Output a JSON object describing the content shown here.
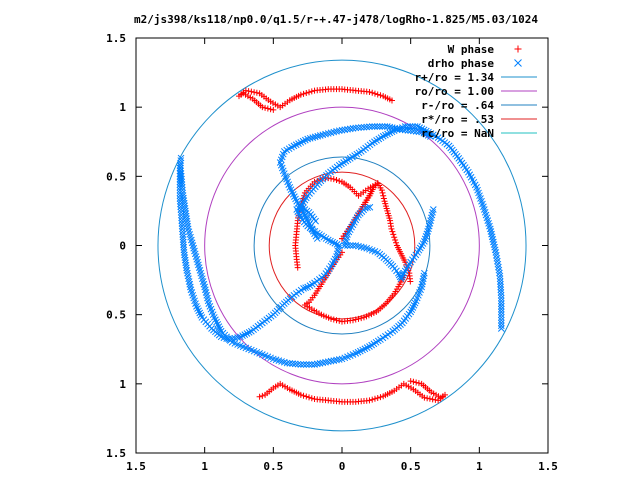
{
  "chart_data": {
    "type": "scatter",
    "title": "m2/js398/ks118/np0.0/q1.5/r-+.47-j478/logRho-1.825/M5.03/1024",
    "xlim": [
      -1.5,
      1.5
    ],
    "ylim": [
      -1.5,
      1.5
    ],
    "x_tick_labels": [
      "1.5",
      "1",
      "0.5",
      "0",
      "0.5",
      "1",
      "1.5"
    ],
    "y_tick_labels": [
      "1.5",
      "1",
      "0.5",
      "0",
      "0.5",
      "1",
      "1.5"
    ],
    "x_tick_values": [
      -1.5,
      -1,
      -0.5,
      0,
      0.5,
      1,
      1.5
    ],
    "y_tick_values": [
      1.5,
      1,
      0.5,
      0,
      -0.5,
      -1,
      -1.5
    ],
    "grid": false,
    "legend_position": "top-right",
    "legend": [
      {
        "label": "W phase",
        "kind": "points",
        "marker": "plus",
        "color": "#ff0000"
      },
      {
        "label": "drho phase",
        "kind": "points",
        "marker": "x",
        "color": "#0080ff"
      },
      {
        "label": "r+/ro = 1.34",
        "kind": "circle",
        "radius": 1.34,
        "color": "#1e90cc"
      },
      {
        "label": "ro/ro = 1.00",
        "kind": "circle",
        "radius": 1.0,
        "color": "#b040c0"
      },
      {
        "label": "r-/ro = .64",
        "kind": "circle",
        "radius": 0.64,
        "color": "#2080c0"
      },
      {
        "label": "r*/ro = .53",
        "kind": "circle",
        "radius": 0.53,
        "color": "#e02020"
      },
      {
        "label": "rc/ro = NaN",
        "kind": "circle",
        "radius": null,
        "color": "#20c0c0"
      }
    ],
    "series": [
      {
        "name": "W phase",
        "marker": "plus",
        "color": "#ff0000",
        "segments": [
          [
            [
              0.0,
              0.05
            ],
            [
              0.05,
              0.12
            ],
            [
              0.1,
              0.2
            ],
            [
              0.15,
              0.28
            ],
            [
              0.2,
              0.36
            ],
            [
              0.23,
              0.42
            ],
            [
              0.26,
              0.45
            ],
            [
              0.29,
              0.4
            ],
            [
              0.31,
              0.32
            ],
            [
              0.33,
              0.25
            ],
            [
              0.35,
              0.18
            ],
            [
              0.36,
              0.12
            ],
            [
              0.38,
              0.06
            ],
            [
              0.4,
              0.0
            ],
            [
              0.43,
              -0.06
            ],
            [
              0.46,
              -0.12
            ],
            [
              0.49,
              -0.2
            ],
            [
              0.5,
              -0.28
            ]
          ],
          [
            [
              0.0,
              0.05
            ],
            [
              0.05,
              0.12
            ],
            [
              0.1,
              0.2
            ],
            [
              0.15,
              0.28
            ],
            [
              0.2,
              0.36
            ],
            [
              0.23,
              0.42
            ],
            [
              0.26,
              0.45
            ],
            [
              0.19,
              0.41
            ],
            [
              0.12,
              0.36
            ],
            [
              0.06,
              0.42
            ],
            [
              0.0,
              0.46
            ],
            [
              -0.06,
              0.48
            ],
            [
              -0.12,
              0.49
            ],
            [
              -0.2,
              0.46
            ],
            [
              -0.27,
              0.38
            ],
            [
              -0.3,
              0.28
            ],
            [
              -0.32,
              0.2
            ],
            [
              -0.33,
              0.1
            ],
            [
              -0.34,
              0.0
            ],
            [
              -0.33,
              -0.1
            ],
            [
              -0.32,
              -0.18
            ]
          ],
          [
            [
              0.0,
              -0.05
            ],
            [
              -0.05,
              -0.12
            ],
            [
              -0.1,
              -0.2
            ],
            [
              -0.15,
              -0.28
            ],
            [
              -0.2,
              -0.36
            ],
            [
              -0.24,
              -0.41
            ],
            [
              -0.27,
              -0.43
            ],
            [
              -0.22,
              -0.46
            ],
            [
              -0.15,
              -0.5
            ],
            [
              -0.08,
              -0.53
            ],
            [
              0.0,
              -0.55
            ],
            [
              0.08,
              -0.54
            ],
            [
              0.16,
              -0.52
            ],
            [
              0.25,
              -0.48
            ],
            [
              0.32,
              -0.42
            ],
            [
              0.38,
              -0.35
            ],
            [
              0.42,
              -0.28
            ],
            [
              0.46,
              -0.2
            ]
          ],
          [
            [
              -0.5,
              0.98
            ],
            [
              -0.58,
              1.0
            ],
            [
              -0.65,
              1.06
            ],
            [
              -0.72,
              1.1
            ],
            [
              -0.75,
              1.08
            ],
            [
              -0.7,
              1.12
            ],
            [
              -0.6,
              1.1
            ],
            [
              -0.52,
              1.04
            ],
            [
              -0.45,
              1.0
            ],
            [
              -0.38,
              1.05
            ],
            [
              -0.3,
              1.09
            ],
            [
              -0.2,
              1.12
            ],
            [
              -0.1,
              1.13
            ],
            [
              0.0,
              1.13
            ],
            [
              0.1,
              1.12
            ],
            [
              0.2,
              1.11
            ],
            [
              0.3,
              1.08
            ],
            [
              0.38,
              1.04
            ]
          ],
          [
            [
              0.5,
              -0.98
            ],
            [
              0.58,
              -1.0
            ],
            [
              0.65,
              -1.06
            ],
            [
              0.72,
              -1.1
            ],
            [
              0.75,
              -1.08
            ],
            [
              0.7,
              -1.12
            ],
            [
              0.6,
              -1.1
            ],
            [
              0.52,
              -1.04
            ],
            [
              0.45,
              -1.0
            ],
            [
              0.38,
              -1.05
            ],
            [
              0.3,
              -1.09
            ],
            [
              0.2,
              -1.12
            ],
            [
              0.1,
              -1.13
            ],
            [
              0.0,
              -1.13
            ],
            [
              -0.1,
              -1.12
            ],
            [
              -0.2,
              -1.11
            ],
            [
              -0.3,
              -1.08
            ],
            [
              -0.38,
              -1.04
            ],
            [
              -0.45,
              -1.0
            ],
            [
              -0.5,
              -1.03
            ],
            [
              -0.56,
              -1.08
            ],
            [
              -0.62,
              -1.1
            ]
          ]
        ]
      },
      {
        "name": "drho phase",
        "marker": "x",
        "color": "#0080ff",
        "segments": [
          [
            [
              -0.02,
              0.0
            ],
            [
              -0.1,
              0.04
            ],
            [
              -0.18,
              0.09
            ],
            [
              -0.25,
              0.14
            ],
            [
              -0.3,
              0.2
            ],
            [
              -0.33,
              0.26
            ],
            [
              -0.3,
              0.28
            ],
            [
              -0.24,
              0.24
            ],
            [
              -0.18,
              0.16
            ]
          ],
          [
            [
              0.02,
              0.0
            ],
            [
              0.1,
              0.0
            ],
            [
              0.18,
              -0.02
            ],
            [
              0.26,
              -0.05
            ],
            [
              0.32,
              -0.1
            ],
            [
              0.37,
              -0.15
            ],
            [
              0.41,
              -0.2
            ],
            [
              0.43,
              -0.24
            ],
            [
              0.45,
              -0.2
            ]
          ],
          [
            [
              -0.02,
              0.0
            ],
            [
              -0.04,
              -0.08
            ],
            [
              -0.08,
              -0.15
            ],
            [
              -0.13,
              -0.22
            ],
            [
              -0.2,
              -0.27
            ],
            [
              -0.25,
              -0.3
            ],
            [
              -0.28,
              -0.31
            ]
          ],
          [
            [
              0.02,
              0.0
            ],
            [
              0.04,
              0.08
            ],
            [
              0.08,
              0.15
            ],
            [
              0.12,
              0.22
            ],
            [
              0.17,
              0.27
            ],
            [
              0.22,
              0.28
            ]
          ],
          [
            [
              -0.3,
              0.28
            ],
            [
              -0.25,
              0.36
            ],
            [
              -0.18,
              0.44
            ],
            [
              -0.1,
              0.52
            ],
            [
              -0.02,
              0.58
            ],
            [
              0.06,
              0.63
            ],
            [
              0.14,
              0.68
            ],
            [
              0.22,
              0.74
            ],
            [
              0.3,
              0.79
            ],
            [
              0.38,
              0.83
            ],
            [
              0.46,
              0.86
            ],
            [
              0.55,
              0.86
            ],
            [
              0.63,
              0.82
            ],
            [
              0.7,
              0.78
            ],
            [
              0.78,
              0.72
            ],
            [
              0.85,
              0.63
            ],
            [
              0.92,
              0.53
            ],
            [
              0.98,
              0.42
            ],
            [
              1.03,
              0.28
            ],
            [
              1.08,
              0.12
            ],
            [
              1.12,
              -0.05
            ],
            [
              1.15,
              -0.22
            ],
            [
              1.16,
              -0.38
            ],
            [
              1.16,
              -0.5
            ],
            [
              1.16,
              -0.62
            ]
          ],
          [
            [
              -0.18,
              0.05
            ],
            [
              -0.22,
              0.12
            ],
            [
              -0.27,
              0.22
            ],
            [
              -0.33,
              0.32
            ],
            [
              -0.38,
              0.42
            ],
            [
              -0.42,
              0.52
            ],
            [
              -0.45,
              0.6
            ],
            [
              -0.42,
              0.68
            ],
            [
              -0.35,
              0.72
            ],
            [
              -0.25,
              0.77
            ],
            [
              -0.14,
              0.8
            ],
            [
              -0.02,
              0.83
            ],
            [
              0.1,
              0.85
            ],
            [
              0.22,
              0.86
            ],
            [
              0.33,
              0.86
            ],
            [
              0.42,
              0.84
            ],
            [
              0.5,
              0.83
            ],
            [
              0.58,
              0.82
            ],
            [
              0.66,
              0.78
            ]
          ],
          [
            [
              0.45,
              -0.2
            ],
            [
              0.5,
              -0.12
            ],
            [
              0.55,
              -0.05
            ],
            [
              0.6,
              0.03
            ],
            [
              0.63,
              0.12
            ],
            [
              0.65,
              0.2
            ],
            [
              0.67,
              0.28
            ]
          ],
          [
            [
              0.6,
              -0.2
            ],
            [
              0.58,
              -0.3
            ],
            [
              0.54,
              -0.4
            ],
            [
              0.5,
              -0.48
            ],
            [
              0.44,
              -0.56
            ],
            [
              0.37,
              -0.62
            ],
            [
              0.28,
              -0.68
            ],
            [
              0.2,
              -0.73
            ],
            [
              0.1,
              -0.78
            ],
            [
              0.0,
              -0.82
            ],
            [
              -0.1,
              -0.84
            ],
            [
              -0.2,
              -0.86
            ],
            [
              -0.3,
              -0.86
            ],
            [
              -0.4,
              -0.85
            ],
            [
              -0.5,
              -0.82
            ],
            [
              -0.6,
              -0.78
            ]
          ],
          [
            [
              -0.28,
              -0.31
            ],
            [
              -0.35,
              -0.36
            ],
            [
              -0.42,
              -0.42
            ],
            [
              -0.5,
              -0.5
            ],
            [
              -0.58,
              -0.56
            ],
            [
              -0.66,
              -0.62
            ],
            [
              -0.74,
              -0.66
            ],
            [
              -0.82,
              -0.68
            ],
            [
              -0.88,
              -0.66
            ],
            [
              -0.95,
              -0.6
            ],
            [
              -1.02,
              -0.52
            ],
            [
              -1.06,
              -0.44
            ],
            [
              -1.1,
              -0.32
            ],
            [
              -1.13,
              -0.18
            ],
            [
              -1.15,
              -0.05
            ],
            [
              -1.16,
              0.08
            ],
            [
              -1.17,
              0.22
            ],
            [
              -1.18,
              0.34
            ],
            [
              -1.18,
              0.46
            ],
            [
              -1.18,
              0.56
            ],
            [
              -1.17,
              0.65
            ]
          ],
          [
            [
              -0.6,
              -0.78
            ],
            [
              -0.7,
              -0.74
            ],
            [
              -0.8,
              -0.7
            ],
            [
              -0.88,
              -0.62
            ],
            [
              -0.93,
              -0.52
            ],
            [
              -0.97,
              -0.42
            ],
            [
              -1.0,
              -0.3
            ],
            [
              -1.04,
              -0.16
            ],
            [
              -1.08,
              -0.02
            ],
            [
              -1.12,
              0.12
            ],
            [
              -1.14,
              0.25
            ],
            [
              -1.16,
              0.38
            ],
            [
              -1.17,
              0.5
            ],
            [
              -1.18,
              0.6
            ]
          ]
        ]
      }
    ]
  }
}
